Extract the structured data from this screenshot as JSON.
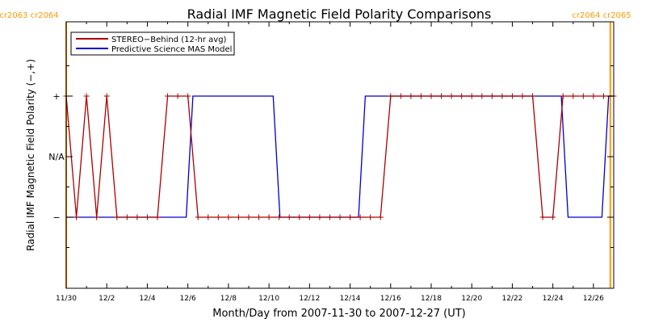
{
  "chart_data": {
    "type": "line",
    "title": "Radial IMF Magnetic Field Polarity Comparisons",
    "xlabel": "Month/Day from 2007-11-30 to 2007-12-27 (UT)",
    "ylabel": "Radial IMF Magnetic Field Polarity (−,+)",
    "xlim": [
      "2007-11-30",
      "2007-12-27"
    ],
    "x_ticks": [
      "11/30",
      "12/2",
      "12/4",
      "12/6",
      "12/8",
      "12/10",
      "12/12",
      "12/14",
      "12/16",
      "12/18",
      "12/20",
      "12/22",
      "12/24",
      "12/26"
    ],
    "y_ticks": [
      "−",
      "N/A",
      "+"
    ],
    "y_levels": {
      "−": -1,
      "N/A": 0,
      "+": 1
    },
    "rotation_labels": [
      {
        "label": "cr2063 cr2064",
        "date": "2007-11-30T00:00"
      },
      {
        "label": "cr2064 cr2065",
        "date": "2007-12-26T20:00"
      }
    ],
    "legend": {
      "position": "top-left"
    },
    "colors": {
      "stereo": "#aa0000",
      "model": "#0000cc",
      "carrington": "#ff9900",
      "axes": "#000000"
    },
    "series": [
      {
        "name": "STEREO−Behind (12-hr avg)",
        "color": "#aa0000",
        "markers": true,
        "points": [
          [
            "2007-11-30T00:00",
            1
          ],
          [
            "2007-11-30T12:00",
            -1
          ],
          [
            "2007-12-01T00:00",
            1
          ],
          [
            "2007-12-01T12:00",
            -1
          ],
          [
            "2007-12-02T00:00",
            1
          ],
          [
            "2007-12-02T12:00",
            -1
          ],
          [
            "2007-12-03T00:00",
            -1
          ],
          [
            "2007-12-03T12:00",
            -1
          ],
          [
            "2007-12-04T00:00",
            -1
          ],
          [
            "2007-12-04T12:00",
            -1
          ],
          [
            "2007-12-05T00:00",
            1
          ],
          [
            "2007-12-05T12:00",
            1
          ],
          [
            "2007-12-06T00:00",
            1
          ],
          [
            "2007-12-06T12:00",
            -1
          ],
          [
            "2007-12-07T00:00",
            -1
          ],
          [
            "2007-12-07T12:00",
            -1
          ],
          [
            "2007-12-08T00:00",
            -1
          ],
          [
            "2007-12-08T12:00",
            -1
          ],
          [
            "2007-12-09T00:00",
            -1
          ],
          [
            "2007-12-09T12:00",
            -1
          ],
          [
            "2007-12-10T00:00",
            -1
          ],
          [
            "2007-12-10T12:00",
            -1
          ],
          [
            "2007-12-11T00:00",
            -1
          ],
          [
            "2007-12-11T12:00",
            -1
          ],
          [
            "2007-12-12T00:00",
            -1
          ],
          [
            "2007-12-12T12:00",
            -1
          ],
          [
            "2007-12-13T00:00",
            -1
          ],
          [
            "2007-12-13T12:00",
            -1
          ],
          [
            "2007-12-14T00:00",
            -1
          ],
          [
            "2007-12-14T12:00",
            -1
          ],
          [
            "2007-12-15T00:00",
            -1
          ],
          [
            "2007-12-15T12:00",
            -1
          ],
          [
            "2007-12-16T00:00",
            1
          ],
          [
            "2007-12-16T12:00",
            1
          ],
          [
            "2007-12-17T00:00",
            1
          ],
          [
            "2007-12-17T12:00",
            1
          ],
          [
            "2007-12-18T00:00",
            1
          ],
          [
            "2007-12-18T12:00",
            1
          ],
          [
            "2007-12-19T00:00",
            1
          ],
          [
            "2007-12-19T12:00",
            1
          ],
          [
            "2007-12-20T00:00",
            1
          ],
          [
            "2007-12-20T12:00",
            1
          ],
          [
            "2007-12-21T00:00",
            1
          ],
          [
            "2007-12-21T12:00",
            1
          ],
          [
            "2007-12-22T00:00",
            1
          ],
          [
            "2007-12-22T12:00",
            1
          ],
          [
            "2007-12-23T00:00",
            1
          ],
          [
            "2007-12-23T12:00",
            -1
          ],
          [
            "2007-12-24T00:00",
            -1
          ],
          [
            "2007-12-24T12:00",
            1
          ],
          [
            "2007-12-25T00:00",
            1
          ],
          [
            "2007-12-25T12:00",
            1
          ],
          [
            "2007-12-26T00:00",
            1
          ],
          [
            "2007-12-26T12:00",
            1
          ],
          [
            "2007-12-27T00:00",
            1
          ]
        ]
      },
      {
        "name": "Predictive Science MAS Model",
        "color": "#0000cc",
        "markers": false,
        "points": [
          [
            "2007-11-30T00:00",
            -1
          ],
          [
            "2007-12-05T22:00",
            -1
          ],
          [
            "2007-12-06T06:00",
            1
          ],
          [
            "2007-12-10T05:00",
            1
          ],
          [
            "2007-12-10T13:00",
            -1
          ],
          [
            "2007-12-14T10:00",
            -1
          ],
          [
            "2007-12-14T18:00",
            1
          ],
          [
            "2007-12-24T10:00",
            1
          ],
          [
            "2007-12-24T18:00",
            -1
          ],
          [
            "2007-12-26T10:00",
            -1
          ],
          [
            "2007-12-26T18:00",
            1
          ],
          [
            "2007-12-27T00:00",
            1
          ]
        ]
      }
    ]
  }
}
